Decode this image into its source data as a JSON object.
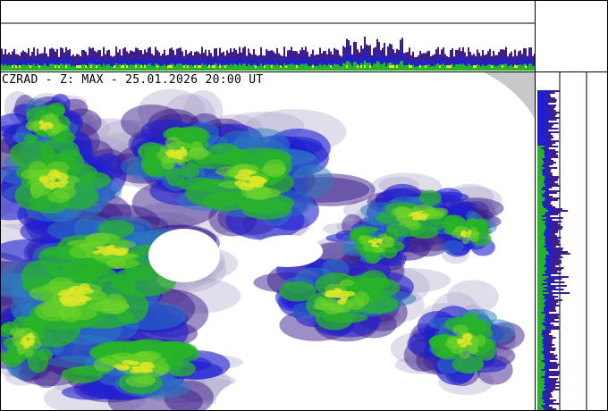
{
  "title": "CZRAD - Z: MAX - 25.01.2026 20:00 UT",
  "palette": {
    "no_echo_grey": "#c8c8c8",
    "weak": "#a8a0c8",
    "light": "#3c1e8c",
    "blue": "#1e1ed2",
    "teal": "#2c7cc0",
    "green": "#28b428",
    "light_green": "#6cd228",
    "yellow": "#dce628"
  }
}
